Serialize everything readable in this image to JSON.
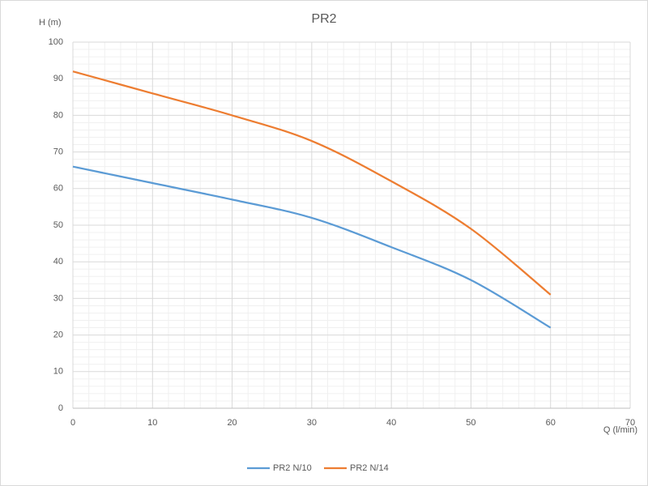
{
  "chart_data": {
    "type": "line",
    "title": "PR2",
    "ylabel": "H (m)",
    "xlabel": "Q (l/min)",
    "x": [
      0,
      10,
      20,
      30,
      40,
      50,
      60
    ],
    "series": [
      {
        "name": "PR2 N/10",
        "color": "#5b9bd5",
        "values": [
          66,
          61.5,
          57,
          52,
          44,
          35,
          22
        ]
      },
      {
        "name": "PR2 N/14",
        "color": "#ed7d31",
        "values": [
          92,
          86,
          80,
          73,
          62,
          49,
          31
        ]
      }
    ],
    "xlim": [
      0,
      70
    ],
    "xticks": [
      0,
      10,
      20,
      30,
      40,
      50,
      60,
      70
    ],
    "ylim": [
      0,
      100
    ],
    "yticks": [
      0,
      10,
      20,
      30,
      40,
      50,
      60,
      70,
      80,
      90,
      100
    ],
    "grid": true,
    "legend": "bottom"
  }
}
